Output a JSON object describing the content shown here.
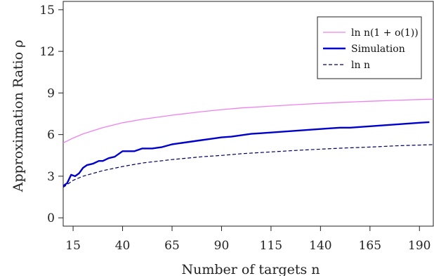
{
  "chart_data": {
    "type": "line",
    "title": "",
    "xlabel": "Number of targets n",
    "ylabel": "Approximation Ratio ρ",
    "xlim": [
      10,
      197
    ],
    "ylim": [
      -0.6,
      15.6
    ],
    "xticks": [
      15,
      40,
      65,
      90,
      115,
      140,
      165,
      190
    ],
    "yticks": [
      0,
      3,
      6,
      9,
      12,
      15
    ],
    "grid": false,
    "legend_position": "top-right",
    "series": [
      {
        "name": "ln n(1 + o(1))",
        "color": "#ee82ee",
        "style": "solid",
        "x": [
          10,
          15,
          20,
          30,
          40,
          50,
          65,
          80,
          90,
          100,
          115,
          130,
          140,
          150,
          165,
          180,
          190,
          197
        ],
        "y": [
          5.4,
          5.75,
          6.05,
          6.5,
          6.85,
          7.1,
          7.4,
          7.65,
          7.8,
          7.92,
          8.05,
          8.18,
          8.25,
          8.32,
          8.4,
          8.48,
          8.53,
          8.55
        ]
      },
      {
        "name": "Simulation",
        "color": "#0000cc",
        "style": "solid",
        "x": [
          10,
          12,
          14,
          16,
          18,
          20,
          22,
          25,
          28,
          30,
          33,
          36,
          40,
          43,
          46,
          50,
          55,
          60,
          65,
          70,
          75,
          80,
          85,
          90,
          95,
          100,
          105,
          110,
          115,
          120,
          125,
          130,
          135,
          140,
          145,
          150,
          155,
          160,
          165,
          170,
          175,
          180,
          185,
          190,
          195
        ],
        "y": [
          2.3,
          2.5,
          3.1,
          3.0,
          3.2,
          3.6,
          3.8,
          3.9,
          4.1,
          4.1,
          4.3,
          4.4,
          4.8,
          4.8,
          4.8,
          5.0,
          5.0,
          5.1,
          5.3,
          5.4,
          5.5,
          5.6,
          5.7,
          5.8,
          5.85,
          5.95,
          6.05,
          6.1,
          6.15,
          6.2,
          6.25,
          6.3,
          6.35,
          6.4,
          6.45,
          6.5,
          6.5,
          6.55,
          6.6,
          6.65,
          6.7,
          6.75,
          6.8,
          6.85,
          6.9
        ]
      },
      {
        "name": "ln n",
        "color": "#000066",
        "style": "dashed",
        "x": [
          10,
          15,
          20,
          30,
          40,
          50,
          65,
          80,
          90,
          100,
          115,
          130,
          140,
          150,
          165,
          180,
          190,
          197
        ],
        "y": [
          2.2,
          2.7,
          3.0,
          3.4,
          3.7,
          3.95,
          4.2,
          4.4,
          4.5,
          4.62,
          4.75,
          4.88,
          4.95,
          5.02,
          5.1,
          5.2,
          5.24,
          5.28
        ]
      }
    ]
  }
}
